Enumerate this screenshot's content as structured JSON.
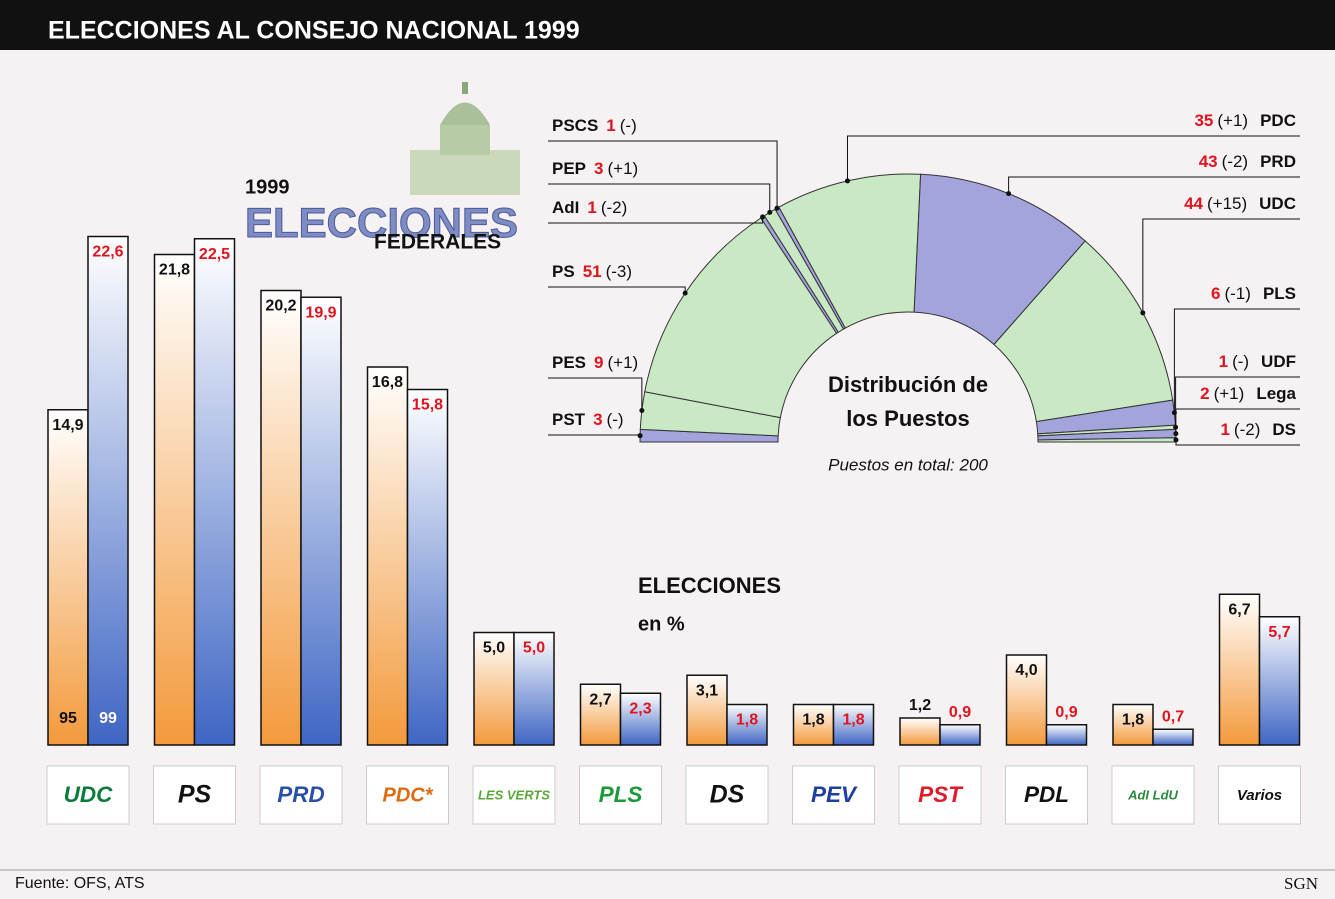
{
  "header": {
    "title": "ELECCIONES AL CONSEJO NACIONAL 1999"
  },
  "logo": {
    "year": "1999",
    "word": "ELECCIONES",
    "sub": "FEDERALES"
  },
  "chart_data": [
    {
      "type": "bar",
      "title": "ELECCIONES",
      "subtitle": "en %",
      "categories": [
        "UDC",
        "PS",
        "PRD",
        "PDC*",
        "LES VERTS",
        "PLS",
        "DS",
        "PEV",
        "PST",
        "PDL",
        "AdI LdU",
        "Varios"
      ],
      "category_colors": [
        "#0a7a3a",
        "#111111",
        "#2b4fa8",
        "#e06a10",
        "#5aa83a",
        "#1a9a3a",
        "#111111",
        "#1e3fa0",
        "#e01a2a",
        "#111111",
        "#2a8a3a",
        "#111111"
      ],
      "series": [
        {
          "name": "95",
          "color": "#f39a3c",
          "label_color": "#111111",
          "values": [
            14.9,
            21.8,
            20.2,
            16.8,
            5.0,
            2.7,
            3.1,
            1.8,
            1.2,
            4.0,
            1.8,
            6.7
          ],
          "value_labels": [
            "14,9",
            "21,8",
            "20,2",
            "16,8",
            "5,0",
            "2,7",
            "3,1",
            "1,8",
            "1,2",
            "4,0",
            "1,8",
            "6,7"
          ]
        },
        {
          "name": "99",
          "color": "#3f66c4",
          "label_color": "#e0141e",
          "values": [
            22.6,
            22.5,
            19.9,
            15.8,
            5.0,
            2.3,
            1.8,
            1.8,
            0.9,
            0.9,
            0.7,
            5.7
          ],
          "value_labels": [
            "22,6",
            "22,5",
            "19,9",
            "15,8",
            "5,0",
            "2,3",
            "1,8",
            "1,8",
            "0,9",
            "0,9",
            "0,7",
            "5,7"
          ]
        }
      ]
    },
    {
      "type": "hemicycle",
      "title": "Distribución de los Puestos",
      "subtitle": "Puestos en total: 200",
      "categories": [
        "PST",
        "PES",
        "PS",
        "AdI",
        "PEP",
        "PSCS",
        "PDC",
        "PRD",
        "UDC",
        "PLS",
        "UDF",
        "Lega",
        "DS"
      ],
      "values": [
        3,
        9,
        51,
        1,
        3,
        1,
        35,
        43,
        44,
        6,
        1,
        2,
        1
      ],
      "changes": [
        "(-)",
        "(+1)",
        "(-3)",
        "(-2)",
        "(+1)",
        "(-)",
        "(+1)",
        "(-2)",
        "(+15)",
        "(-1)",
        "(-)",
        "(+1)",
        "(-2)"
      ],
      "colors": [
        "#a3a4dc",
        "#c9e8c4",
        "#c9e8c4",
        "#a3a4dc",
        "#c9e8c4",
        "#a3a4dc",
        "#c9e8c4",
        "#a3a4dc",
        "#c9e8c4",
        "#a3a4dc",
        "#c9e8c4",
        "#a3a4dc",
        "#c9e8c4"
      ],
      "seat_color": "#e0141e"
    }
  ],
  "footer": {
    "source": "Fuente: OFS, ATS",
    "credit": "SGN"
  }
}
